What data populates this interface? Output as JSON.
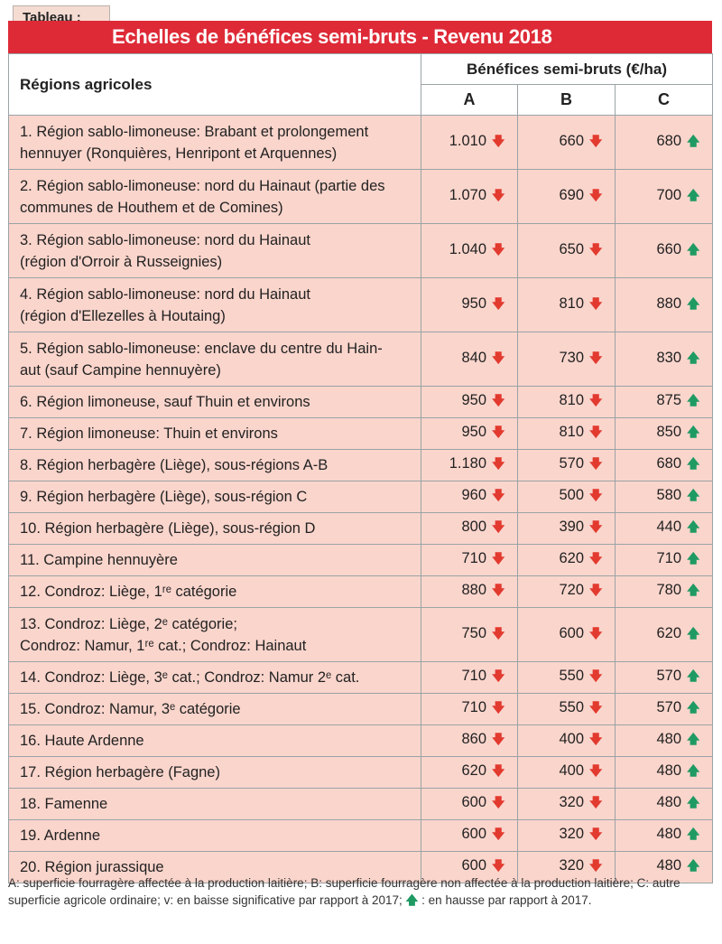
{
  "tab_label": "Tableau :",
  "title": "Echelles de bénéfices semi-bruts - Revenu 2018",
  "header": {
    "region_col": "Régions agricoles",
    "group": "Bénéfices semi-bruts (€/ha)",
    "cols": [
      "A",
      "B",
      "C"
    ]
  },
  "colors": {
    "title_bg": "#de2a37",
    "row_bg": "#fad5cc",
    "down": "#e23a2f",
    "up": "#1f9a63"
  },
  "icons": {
    "down": "red-down-arrow-icon",
    "up": "green-up-arrow-icon"
  },
  "rows": [
    {
      "lines": [
        "1. Région sablo-limoneuse: Brabant et prolongement",
        "hennuyer (Ronquières, Henripont et Arquennes)"
      ],
      "a": "1.010",
      "b": "660",
      "c": "680",
      "ta": "down",
      "tb": "down",
      "tc": "up"
    },
    {
      "lines": [
        "2. Région sablo-limoneuse: nord du Hainaut (partie des",
        "communes de Houthem et de Comines)"
      ],
      "a": "1.070",
      "b": "690",
      "c": "700",
      "ta": "down",
      "tb": "down",
      "tc": "up"
    },
    {
      "lines": [
        "3. Région sablo-limoneuse: nord du Hainaut",
        "(région d'Orroir à Russeignies)"
      ],
      "a": "1.040",
      "b": "650",
      "c": "660",
      "ta": "down",
      "tb": "down",
      "tc": "up"
    },
    {
      "lines": [
        "4. Région sablo-limoneuse: nord du Hainaut",
        "(région d'Ellezelles à Houtaing)"
      ],
      "a": "950",
      "b": "810",
      "c": "880",
      "ta": "down",
      "tb": "down",
      "tc": "up"
    },
    {
      "lines": [
        "5. Région sablo-limoneuse: enclave du centre du Hain-",
        "aut (sauf Campine hennuyère)"
      ],
      "a": "840",
      "b": "730",
      "c": "830",
      "ta": "down",
      "tb": "down",
      "tc": "up"
    },
    {
      "lines": [
        "6. Région limoneuse, sauf Thuin et environs"
      ],
      "a": "950",
      "b": "810",
      "c": "875",
      "ta": "down",
      "tb": "down",
      "tc": "up"
    },
    {
      "lines": [
        "7. Région limoneuse: Thuin et environs"
      ],
      "a": "950",
      "b": "810",
      "c": "850",
      "ta": "down",
      "tb": "down",
      "tc": "up"
    },
    {
      "lines": [
        "8. Région herbagère (Liège), sous-régions A-B"
      ],
      "a": "1.180",
      "b": "570",
      "c": "680",
      "ta": "down",
      "tb": "down",
      "tc": "up"
    },
    {
      "lines": [
        "9. Région herbagère (Liège), sous-région C"
      ],
      "a": "960",
      "b": "500",
      "c": "580",
      "ta": "down",
      "tb": "down",
      "tc": "up"
    },
    {
      "lines": [
        "10. Région herbagère (Liège), sous-région D"
      ],
      "a": "800",
      "b": "390",
      "c": "440",
      "ta": "down",
      "tb": "down",
      "tc": "up"
    },
    {
      "lines": [
        "11. Campine hennuyère"
      ],
      "a": "710",
      "b": "620",
      "c": "710",
      "ta": "down",
      "tb": "down",
      "tc": "up"
    },
    {
      "lines": [
        "12. Condroz: Liège, 1ʳᵉ catégorie"
      ],
      "a": "880",
      "b": "720",
      "c": "780",
      "ta": "down",
      "tb": "down",
      "tc": "up"
    },
    {
      "lines": [
        "13. Condroz: Liège, 2ᵉ catégorie;",
        "Condroz: Namur, 1ʳᵉ cat.; Condroz: Hainaut"
      ],
      "a": "750",
      "b": "600",
      "c": "620",
      "ta": "down",
      "tb": "down",
      "tc": "up"
    },
    {
      "lines": [
        "14. Condroz: Liège, 3ᵉ cat.; Condroz: Namur 2ᵉ cat."
      ],
      "a": "710",
      "b": "550",
      "c": "570",
      "ta": "down",
      "tb": "down",
      "tc": "up"
    },
    {
      "lines": [
        "15. Condroz: Namur, 3ᵉ catégorie"
      ],
      "a": "710",
      "b": "550",
      "c": "570",
      "ta": "down",
      "tb": "down",
      "tc": "up"
    },
    {
      "lines": [
        "16. Haute Ardenne"
      ],
      "a": "860",
      "b": "400",
      "c": "480",
      "ta": "down",
      "tb": "down",
      "tc": "up"
    },
    {
      "lines": [
        "17. Région herbagère (Fagne)"
      ],
      "a": "620",
      "b": "400",
      "c": "480",
      "ta": "down",
      "tb": "down",
      "tc": "up"
    },
    {
      "lines": [
        "18. Famenne"
      ],
      "a": "600",
      "b": "320",
      "c": "480",
      "ta": "down",
      "tb": "down",
      "tc": "up"
    },
    {
      "lines": [
        "19. Ardenne"
      ],
      "a": "600",
      "b": "320",
      "c": "480",
      "ta": "down",
      "tb": "down",
      "tc": "up"
    },
    {
      "lines": [
        "20. Région jurassique"
      ],
      "a": "600",
      "b": "320",
      "c": "480",
      "ta": "down",
      "tb": "down",
      "tc": "up"
    }
  ],
  "footnote": {
    "part1": "A: superficie fourragère affectée à la production laitière; B: superficie fourragère non affectée à la production laitière; C: autre superficie agricole ordinaire; v: en baisse significative par rapport à 2017;",
    "part2": ": en hausse par rapport à 2017."
  }
}
